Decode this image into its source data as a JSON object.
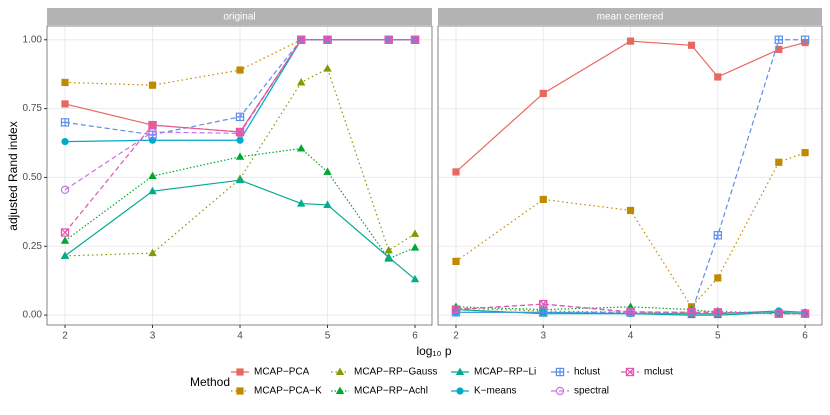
{
  "chart_data": [
    {
      "type": "line",
      "title": "original",
      "x": [
        2,
        3,
        4,
        4.699,
        5,
        5.699,
        6
      ],
      "xlim": [
        1.794,
        6.194
      ],
      "xticks": [
        2,
        3,
        4,
        5,
        6
      ],
      "ylim": [
        -0.036,
        1.05
      ],
      "yticks": [
        {
          "value": 0,
          "label": "0.00"
        },
        {
          "value": 0.25,
          "label": "0.25"
        },
        {
          "value": 0.5,
          "label": "0.50"
        },
        {
          "value": 0.75,
          "label": "0.75"
        },
        {
          "value": 1,
          "label": "1.00"
        }
      ],
      "grid": true,
      "series": [
        {
          "name": "MCAP−PCA",
          "color": "#e8685f",
          "marker": "square",
          "dash": "solid",
          "values": [
            0.767,
            0.69,
            0.665,
            1,
            1,
            1,
            1
          ]
        },
        {
          "name": "MCAP−PCA−K",
          "color": "#c08a00",
          "marker": "square",
          "dash": "dotted",
          "values": [
            0.845,
            0.835,
            0.89,
            1,
            1,
            1,
            1
          ]
        },
        {
          "name": "MCAP−RP−Gauss",
          "color": "#7f9b00",
          "marker": "triangle",
          "dash": "dotted",
          "values": [
            0.215,
            0.225,
            0.495,
            0.845,
            0.895,
            0.235,
            0.295
          ]
        },
        {
          "name": "MCAP−RP−Achl",
          "color": "#00a832",
          "marker": "triangle",
          "dash": "dotdash",
          "values": [
            0.27,
            0.505,
            0.575,
            0.605,
            0.52,
            0.205,
            0.245
          ]
        },
        {
          "name": "MCAP−RP−Li",
          "color": "#00ab8e",
          "marker": "triangle",
          "dash": "solid",
          "values": [
            0.215,
            0.45,
            0.49,
            0.405,
            0.4,
            0.21,
            0.13
          ]
        },
        {
          "name": "K−means",
          "color": "#00aac8",
          "marker": "circle",
          "dash": "solid",
          "values": [
            0.63,
            0.635,
            0.635,
            1,
            1,
            1,
            1
          ]
        },
        {
          "name": "hclust",
          "color": "#5c8fe8",
          "marker": "square-cross",
          "dash": "dashed",
          "values": [
            0.7,
            0.655,
            0.72,
            1,
            1,
            1,
            1
          ]
        },
        {
          "name": "spectral",
          "color": "#c873e6",
          "marker": "circle-open",
          "dash": "dashed",
          "values": [
            0.455,
            0.665,
            0.66,
            1,
            1,
            1,
            1
          ]
        },
        {
          "name": "mclust",
          "color": "#e455b0",
          "marker": "square-x",
          "dash": "dashed",
          "values": [
            0.3,
            0.69,
            0.665,
            1,
            1,
            1,
            1
          ]
        }
      ]
    },
    {
      "type": "line",
      "title": "mean centered",
      "x": [
        2,
        3,
        4,
        4.699,
        5,
        5.699,
        6
      ],
      "xlim": [
        1.794,
        6.194
      ],
      "xticks": [
        2,
        3,
        4,
        5,
        6
      ],
      "ylim": [
        -0.036,
        1.05
      ],
      "grid": true,
      "series": [
        {
          "name": "MCAP−PCA",
          "color": "#e8685f",
          "marker": "square",
          "dash": "solid",
          "values": [
            0.52,
            0.805,
            0.995,
            0.98,
            0.865,
            0.965,
            0.99
          ]
        },
        {
          "name": "MCAP−PCA−K",
          "color": "#c08a00",
          "marker": "square",
          "dash": "dotted",
          "values": [
            0.195,
            0.42,
            0.38,
            0.03,
            0.135,
            0.555,
            0.59
          ]
        },
        {
          "name": "MCAP−RP−Gauss",
          "color": "#7f9b00",
          "marker": "triangle",
          "dash": "dotted",
          "values": [
            0.025,
            0.015,
            0.01,
            0.01,
            0.015,
            0.005,
            0.005
          ]
        },
        {
          "name": "MCAP−RP−Achl",
          "color": "#00a832",
          "marker": "triangle",
          "dash": "dotdash",
          "values": [
            0.03,
            0.02,
            0.03,
            0.02,
            0.01,
            0.005,
            0.005
          ]
        },
        {
          "name": "MCAP−RP−Li",
          "color": "#00ab8e",
          "marker": "triangle",
          "dash": "solid",
          "values": [
            0.02,
            0.005,
            0.005,
            0,
            0,
            0.01,
            0.005
          ]
        },
        {
          "name": "K−means",
          "color": "#00aac8",
          "marker": "circle",
          "dash": "solid",
          "values": [
            0.01,
            0.01,
            0.005,
            0.005,
            0.005,
            0.015,
            0.01
          ]
        },
        {
          "name": "hclust",
          "color": "#5c8fe8",
          "marker": "square-cross",
          "dash": "dashed",
          "values": [
            0.01,
            0.01,
            0.01,
            0.01,
            0.29,
            1,
            1
          ]
        },
        {
          "name": "spectral",
          "color": "#c873e6",
          "marker": "circle-open",
          "dash": "dashed",
          "values": [
            0.02,
            0.04,
            0.01,
            0.01,
            0.01,
            0.005,
            0.005
          ]
        },
        {
          "name": "mclust",
          "color": "#e455b0",
          "marker": "square-x",
          "dash": "dashed",
          "values": [
            0.02,
            0.04,
            0.012,
            0.01,
            0.01,
            0.005,
            0.005
          ]
        }
      ]
    }
  ],
  "y_label": "adjusted Rand index",
  "x_label": "log₁₀ p",
  "legend_title": "Method"
}
